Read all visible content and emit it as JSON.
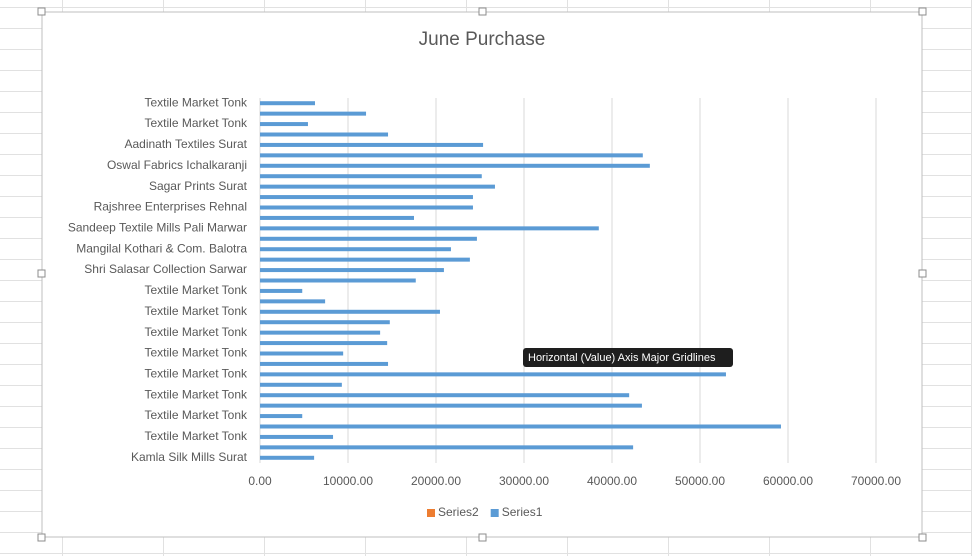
{
  "chart_data": {
    "type": "bar",
    "orientation": "horizontal",
    "title": "June Purchase",
    "categories": [
      "Textile Market Tonk",
      null,
      "Textile Market Tonk",
      null,
      "Aadinath Textiles Surat",
      null,
      "Oswal Fabrics Ichalkaranji",
      null,
      "Sagar Prints Surat",
      null,
      "Rajshree Enterprises Rehnal",
      null,
      "Sandeep Textile Mills Pali Marwar",
      null,
      "Mangilal Kothari & Com. Balotra",
      null,
      "Shri Salasar Collection Sarwar",
      null,
      "Textile Market Tonk",
      null,
      "Textile Market Tonk",
      null,
      "Textile Market Tonk",
      null,
      "Textile Market Tonk",
      null,
      "Textile Market Tonk",
      null,
      "Textile Market Tonk",
      null,
      "Textile Market Tonk",
      null,
      "Textile Market Tonk",
      null,
      "Kamla Silk Mills Surat"
    ],
    "series": [
      {
        "name": "Series2",
        "color": "#ed7d31",
        "values": [
          null,
          null,
          null,
          null,
          null,
          null,
          null,
          null,
          null,
          null,
          null,
          null,
          null,
          null,
          null,
          null,
          null,
          null,
          null,
          null,
          null,
          null,
          null,
          null,
          null,
          null,
          null,
          null,
          null,
          null,
          null,
          null,
          null,
          null,
          null
        ]
      },
      {
        "name": "Series1",
        "color": "#5b9bd5",
        "values": [
          6250,
          12050,
          5450,
          14550,
          25350,
          43500,
          44300,
          25200,
          26700,
          24200,
          24200,
          17500,
          38500,
          24650,
          21700,
          23850,
          20900,
          17700,
          4800,
          7400,
          20450,
          14750,
          13650,
          14450,
          9450,
          14550,
          52950,
          9300,
          41950,
          43400,
          4800,
          59200,
          8300,
          42400,
          6150
        ]
      }
    ],
    "xlim": [
      0,
      70000
    ],
    "xticks": [
      {
        "value": 0,
        "label": "0.00"
      },
      {
        "value": 10000,
        "label": "10000.00"
      },
      {
        "value": 20000,
        "label": "20000.00"
      },
      {
        "value": 30000,
        "label": "30000.00"
      },
      {
        "value": 40000,
        "label": "40000.00"
      },
      {
        "value": 50000,
        "label": "50000.00"
      },
      {
        "value": 60000,
        "label": "60000.00"
      },
      {
        "value": 70000,
        "label": "70000.00"
      }
    ],
    "grid": true,
    "legend": "bottom",
    "tooltip": "Horizontal (Value) Axis Major Gridlines"
  }
}
